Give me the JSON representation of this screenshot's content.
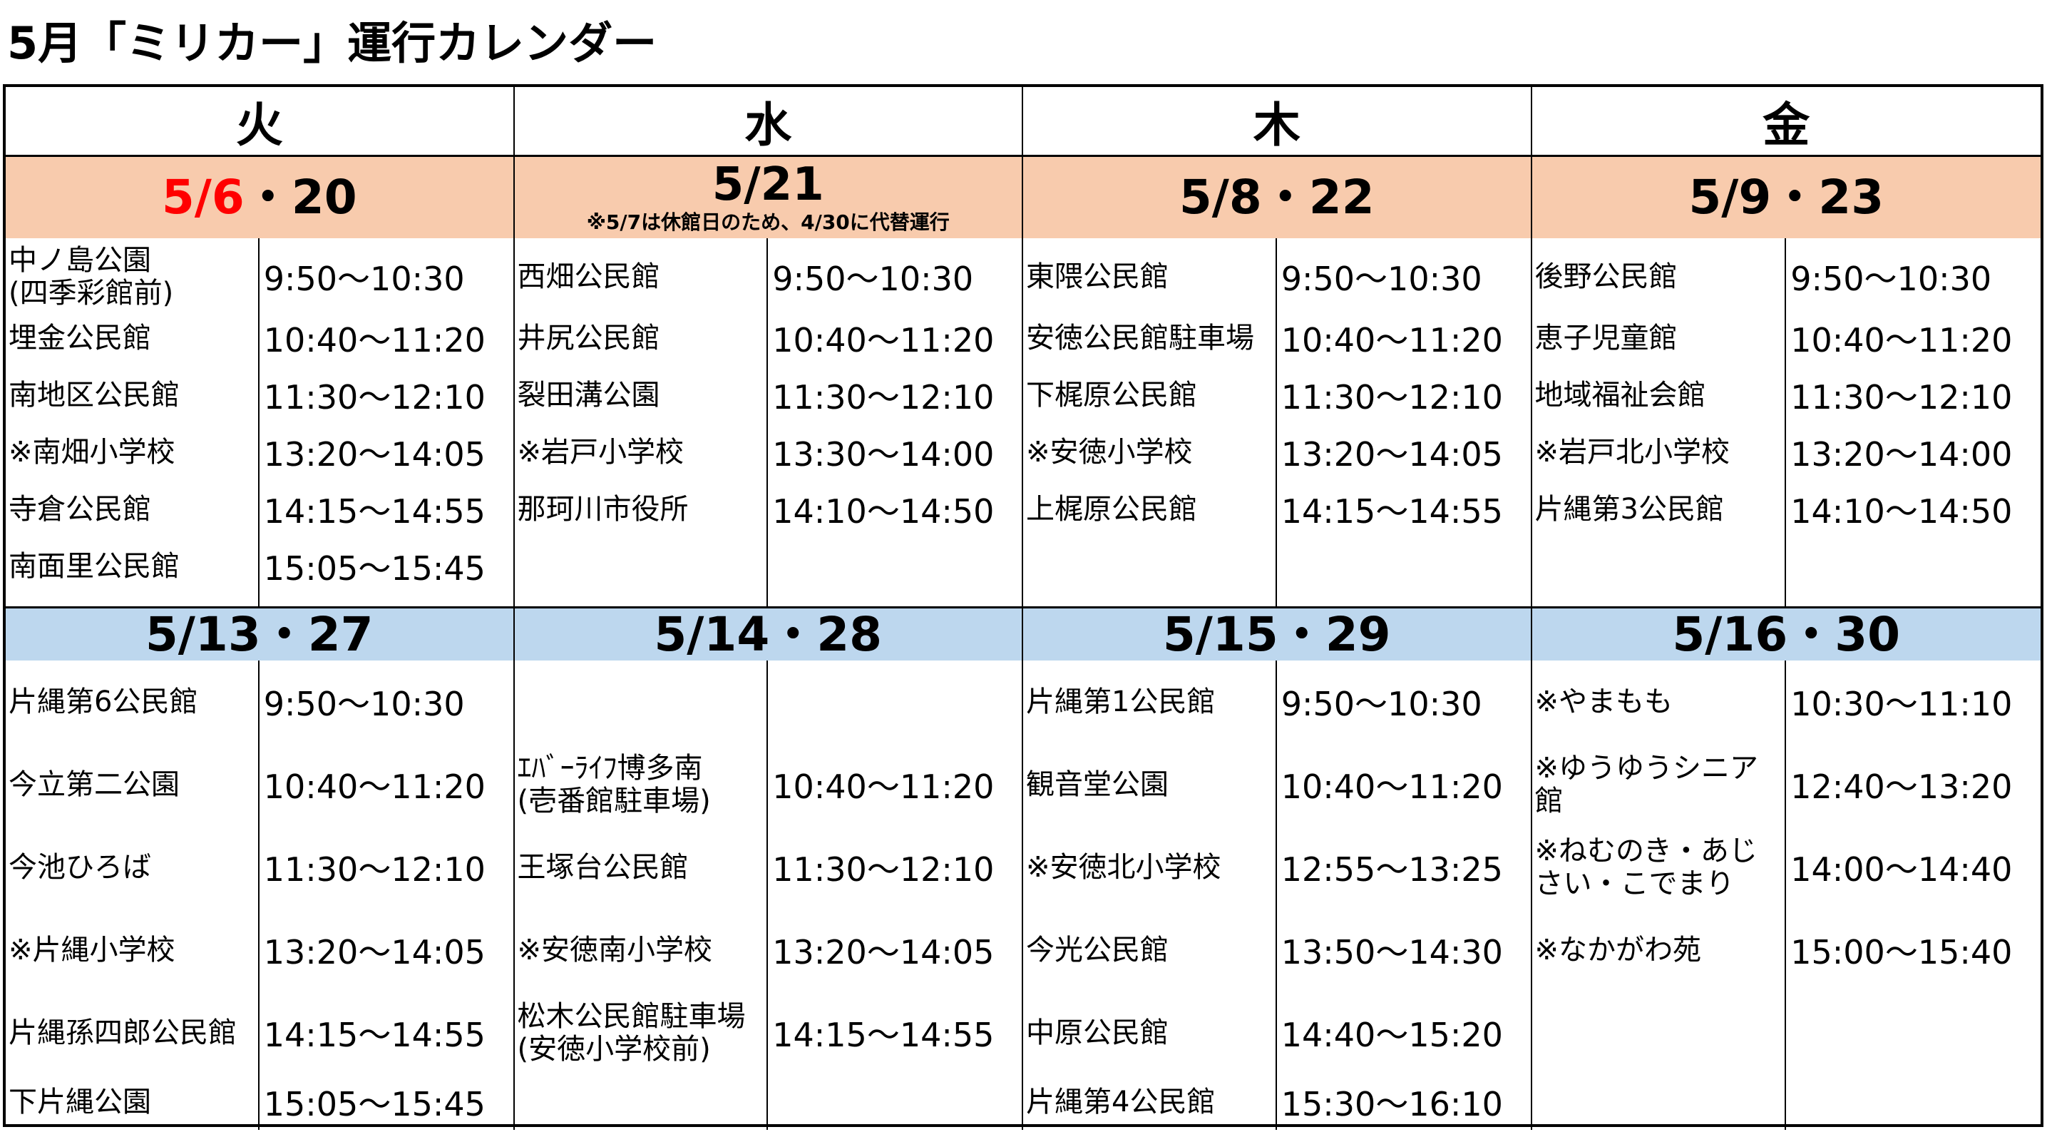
{
  "title": "5月「ミリカー」運行カレンダー",
  "days": [
    {
      "label": "火"
    },
    {
      "label": "水"
    },
    {
      "label": "木"
    },
    {
      "label": "金"
    }
  ],
  "week1": [
    {
      "date_red": "5/6",
      "date": "・20",
      "note": "",
      "rows": [
        {
          "loc": "中ノ島公園\n(四季彩館前)",
          "time": "9:50～10:30"
        },
        {
          "loc": "埋金公民館",
          "time": "10:40～11:20"
        },
        {
          "loc": "南地区公民館",
          "time": "11:30～12:10"
        },
        {
          "loc": "※南畑小学校",
          "time": "13:20～14:05"
        },
        {
          "loc": "寺倉公民館",
          "time": "14:15～14:55"
        },
        {
          "loc": "南面里公民館",
          "time": "15:05～15:45"
        }
      ]
    },
    {
      "date_red": "",
      "date": "5/21",
      "note": "※5/7は休館日のため、4/30に代替運行",
      "rows": [
        {
          "loc": "西畑公民館",
          "time": "9:50～10:30"
        },
        {
          "loc": "井尻公民館",
          "time": "10:40～11:20"
        },
        {
          "loc": "裂田溝公園",
          "time": "11:30～12:10"
        },
        {
          "loc": "※岩戸小学校",
          "time": "13:30～14:00"
        },
        {
          "loc": "那珂川市役所",
          "time": "14:10～14:50"
        },
        {
          "loc": "",
          "time": ""
        }
      ]
    },
    {
      "date_red": "",
      "date": "5/8・22",
      "note": "",
      "rows": [
        {
          "loc": "東隈公民館",
          "time": "9:50～10:30"
        },
        {
          "loc": "安徳公民館駐車場",
          "time": "10:40～11:20"
        },
        {
          "loc": "下梶原公民館",
          "time": "11:30～12:10"
        },
        {
          "loc": "※安徳小学校",
          "time": "13:20～14:05"
        },
        {
          "loc": "上梶原公民館",
          "time": "14:15～14:55"
        },
        {
          "loc": "",
          "time": ""
        }
      ]
    },
    {
      "date_red": "",
      "date": "5/9・23",
      "note": "",
      "rows": [
        {
          "loc": "後野公民館",
          "time": "9:50～10:30"
        },
        {
          "loc": "恵子児童館",
          "time": "10:40～11:20"
        },
        {
          "loc": "地域福祉会館",
          "time": "11:30～12:10"
        },
        {
          "loc": "※岩戸北小学校",
          "time": "13:20～14:00"
        },
        {
          "loc": "片縄第3公民館",
          "time": "14:10～14:50"
        },
        {
          "loc": "",
          "time": ""
        }
      ]
    }
  ],
  "week2": [
    {
      "date": "5/13・27",
      "rows": [
        {
          "loc": "片縄第6公民館",
          "time": "9:50～10:30"
        },
        {
          "loc": "今立第二公園",
          "time": "10:40～11:20"
        },
        {
          "loc": "今池ひろば",
          "time": "11:30～12:10"
        },
        {
          "loc": "※片縄小学校",
          "time": "13:20～14:05"
        },
        {
          "loc": "片縄孫四郎公民館",
          "time": "14:15～14:55"
        },
        {
          "loc": "下片縄公園",
          "time": "15:05～15:45"
        }
      ]
    },
    {
      "date": "5/14・28",
      "rows": [
        {
          "loc": "",
          "time": ""
        },
        {
          "loc": "ｴﾊﾞｰﾗｲﾌ博多南\n(壱番館駐車場)",
          "time": "10:40～11:20"
        },
        {
          "loc": "王塚台公民館",
          "time": "11:30～12:10"
        },
        {
          "loc": "※安徳南小学校",
          "time": "13:20～14:05"
        },
        {
          "loc": "松木公民館駐車場\n(安徳小学校前)",
          "time": "14:15～14:55"
        },
        {
          "loc": "",
          "time": ""
        }
      ]
    },
    {
      "date": "5/15・29",
      "rows": [
        {
          "loc": "片縄第1公民館",
          "time": "9:50～10:30"
        },
        {
          "loc": "観音堂公園",
          "time": "10:40～11:20"
        },
        {
          "loc": "※安徳北小学校",
          "time": "12:55～13:25"
        },
        {
          "loc": "今光公民館",
          "time": "13:50～14:30"
        },
        {
          "loc": "中原公民館",
          "time": "14:40～15:20"
        },
        {
          "loc": "片縄第4公民館",
          "time": "15:30～16:10"
        }
      ]
    },
    {
      "date": "5/16・30",
      "rows": [
        {
          "loc": "※やまもも",
          "time": "10:30～11:10"
        },
        {
          "loc": "※ゆうゆうシニア館",
          "time": "12:40～13:20"
        },
        {
          "loc": "※ねむのき・あじさい・こでまり",
          "time": "14:00～14:40"
        },
        {
          "loc": "※なかがわ苑",
          "time": "15:00～15:40"
        },
        {
          "loc": "",
          "time": ""
        },
        {
          "loc": "",
          "time": ""
        }
      ]
    }
  ]
}
